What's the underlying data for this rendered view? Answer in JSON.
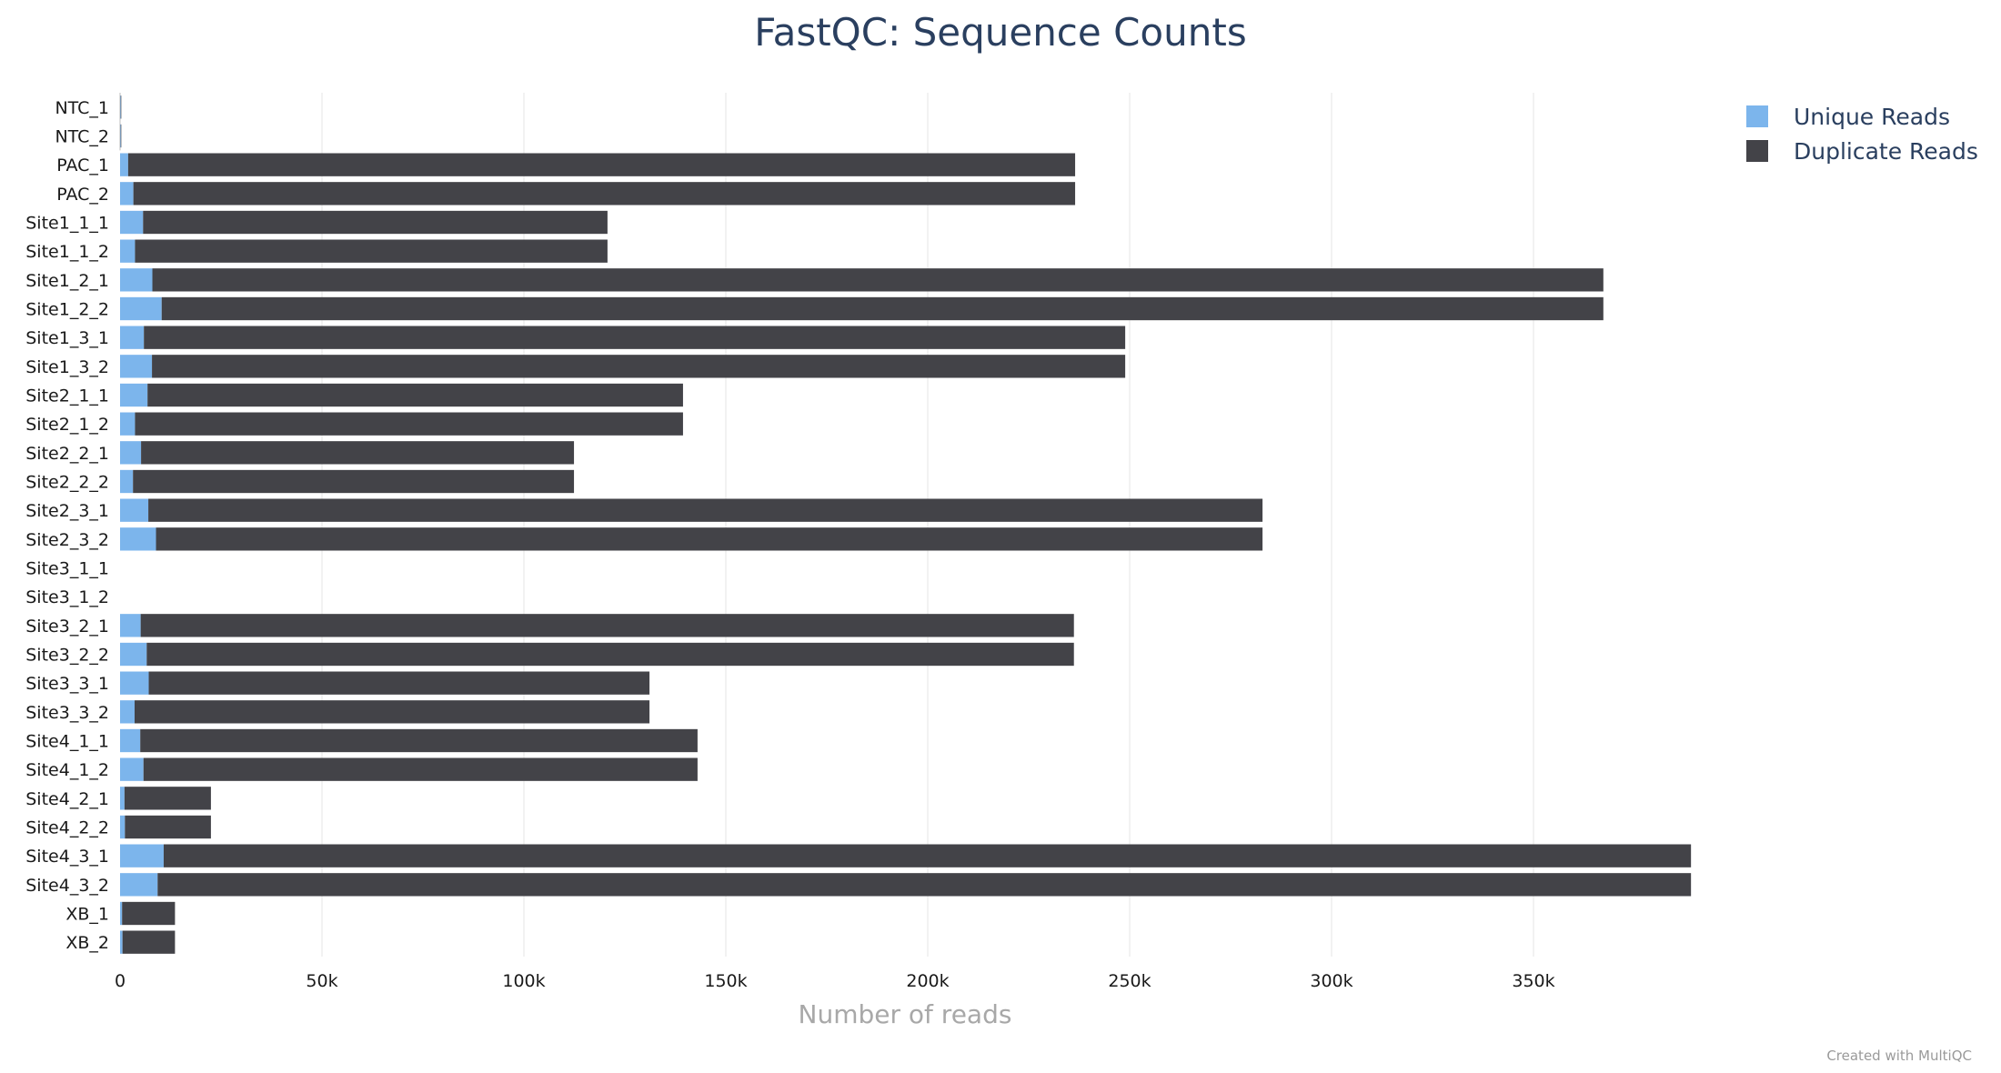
{
  "chart_data": {
    "type": "bar",
    "orientation": "horizontal",
    "stacked": true,
    "title": "FastQC: Sequence Counts",
    "xlabel": "Number of reads",
    "ylabel": "",
    "xlim": [
      0,
      400000
    ],
    "x_ticks": [
      {
        "value": 0,
        "label": "0"
      },
      {
        "value": 50000,
        "label": "50k"
      },
      {
        "value": 100000,
        "label": "100k"
      },
      {
        "value": 150000,
        "label": "150k"
      },
      {
        "value": 200000,
        "label": "200k"
      },
      {
        "value": 250000,
        "label": "250k"
      },
      {
        "value": 300000,
        "label": "300k"
      },
      {
        "value": 350000,
        "label": "350k"
      }
    ],
    "grid": "vertical",
    "legend_position": "top-right",
    "categories": [
      "NTC_1",
      "NTC_2",
      "PAC_1",
      "PAC_2",
      "Site1_1_1",
      "Site1_1_2",
      "Site1_2_1",
      "Site1_2_2",
      "Site1_3_1",
      "Site1_3_2",
      "Site2_1_1",
      "Site2_1_2",
      "Site2_2_1",
      "Site2_2_2",
      "Site2_3_1",
      "Site2_3_2",
      "Site3_1_1",
      "Site3_1_2",
      "Site3_2_1",
      "Site3_2_2",
      "Site3_3_1",
      "Site3_3_2",
      "Site4_1_1",
      "Site4_1_2",
      "Site4_2_1",
      "Site4_2_2",
      "Site4_3_1",
      "Site4_3_2",
      "XB_1",
      "XB_2"
    ],
    "series": [
      {
        "name": "Unique Reads",
        "color": "#7cb5ec",
        "values": [
          150,
          150,
          2000,
          3300,
          5700,
          3700,
          8000,
          10300,
          5900,
          7900,
          6800,
          3700,
          5200,
          3200,
          7000,
          8900,
          0,
          0,
          5100,
          6600,
          7100,
          3600,
          5000,
          5800,
          1100,
          1200,
          10800,
          9300,
          500,
          600
        ]
      },
      {
        "name": "Duplicate Reads",
        "color": "#434348",
        "values": [
          150,
          150,
          234500,
          233200,
          115000,
          117000,
          359300,
          357000,
          243000,
          241000,
          132600,
          135700,
          107200,
          109200,
          275900,
          274000,
          0,
          0,
          231100,
          229600,
          124000,
          127500,
          138000,
          137200,
          21400,
          21300,
          378200,
          379700,
          13100,
          13000
        ]
      }
    ]
  },
  "credit": "Created with MultiQC"
}
